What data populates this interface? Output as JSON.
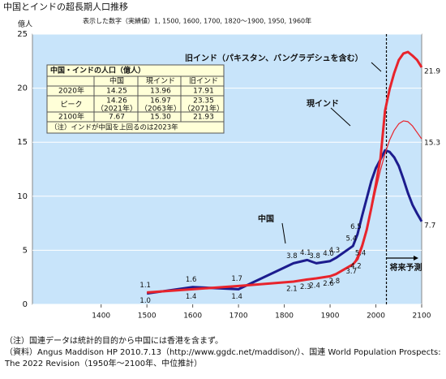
{
  "title": "中国とインドの超長期人口推移",
  "chart_data": {
    "type": "line",
    "subtitle": "表示した数字（実績値）1, 1500, 1600, 1700, 1820～1900, 1950, 1960年",
    "y_label": "億人",
    "x": [
      1500,
      1600,
      1700,
      1820,
      1850,
      1870,
      1900,
      1913,
      1950,
      1960,
      1970,
      1980,
      1990,
      2000,
      2010,
      2020,
      2030,
      2040,
      2050,
      2060,
      2070,
      2080,
      2090,
      2100
    ],
    "series": [
      {
        "name": "中国",
        "color": "#1c1c8e",
        "width": 3,
        "values": [
          1.0,
          1.6,
          1.4,
          3.8,
          4.1,
          3.8,
          4.0,
          4.3,
          5.4,
          6.5,
          8.2,
          9.8,
          11.4,
          12.6,
          13.4,
          14.25,
          14.1,
          13.6,
          12.8,
          11.6,
          10.3,
          9.2,
          8.4,
          7.67
        ],
        "value_labels": [
          "1.0",
          "1.6",
          "1.4",
          "3.8",
          "4.1",
          "3.8",
          "4.0",
          "4.3",
          "5.4",
          "6.5",
          null,
          null,
          null,
          null,
          null,
          null,
          null,
          null,
          null,
          null,
          null,
          null,
          null,
          "7.7"
        ]
      },
      {
        "name": "現インド",
        "color": "#e8242c",
        "width": 1.2,
        "values": [
          null,
          null,
          null,
          null,
          null,
          null,
          null,
          null,
          3.6,
          4.5,
          5.6,
          7.0,
          8.7,
          10.6,
          12.4,
          13.96,
          15.2,
          16.1,
          16.7,
          16.97,
          16.9,
          16.5,
          15.9,
          15.3
        ],
        "value_labels": [
          null,
          null,
          null,
          null,
          null,
          null,
          null,
          null,
          null,
          null,
          null,
          null,
          null,
          null,
          null,
          null,
          null,
          null,
          null,
          null,
          null,
          null,
          null,
          "15.3"
        ]
      },
      {
        "name": "旧インド（パキスタン、バングラデシュを含む）",
        "color": "#e8242c",
        "width": 3,
        "values": [
          1.1,
          1.4,
          1.7,
          2.1,
          2.3,
          2.4,
          2.6,
          2.8,
          3.7,
          4.2,
          5.4,
          6.9,
          8.9,
          11.1,
          13.5,
          17.91,
          19.9,
          21.4,
          22.6,
          23.2,
          23.35,
          23.0,
          22.6,
          21.93
        ],
        "value_labels": [
          "1.1",
          "1.4",
          "1.7",
          "2.1",
          "2.3",
          "2.4",
          "2.6",
          "2.8",
          "3.7",
          "4.2",
          "5.4",
          null,
          null,
          null,
          null,
          null,
          null,
          null,
          null,
          null,
          null,
          null,
          null,
          "21.9"
        ]
      }
    ],
    "xlim": [
      1250,
      2100
    ],
    "xticks": [
      1400,
      1500,
      1600,
      1700,
      1800,
      1900,
      2000,
      2100
    ],
    "ylim": [
      0,
      25
    ],
    "yticks": [
      0,
      5,
      10,
      15,
      20,
      25
    ],
    "grid": true,
    "forecast_start": 2023,
    "forecast_label": "将来予測",
    "table": {
      "title": "中国・インドの人口（億人）",
      "header": [
        "中国",
        "現インド",
        "旧インド"
      ],
      "rows": [
        [
          "2020年",
          "14.25",
          "13.96",
          "17.91"
        ],
        [
          "ピーク",
          "14.26",
          "16.97",
          "23.35"
        ],
        [
          "2100年",
          "7.67",
          "15.30",
          "21.93"
        ]
      ],
      "peak_years": [
        "（2021年）",
        "（2063年）",
        "（2071年）"
      ],
      "note": "（注）インドが中国を上回るのは2023年"
    }
  },
  "notes": [
    "（注）国連データは統計的目的から中国には香港を含まず。",
    "（資料）Angus Maddison HP 2010.7.13（http://www.ggdc.net/maddison/）、国連 World Population Prospects: The 2022 Revision（1950年～2100年、中位推計）"
  ]
}
